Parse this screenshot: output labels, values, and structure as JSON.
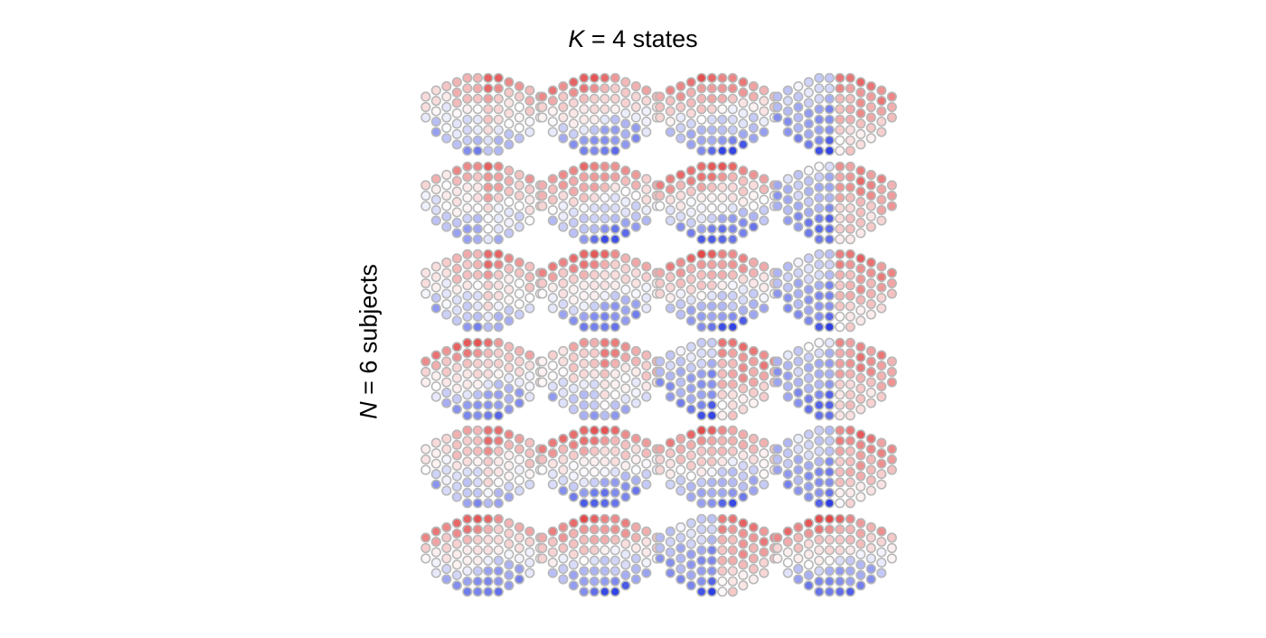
{
  "title": {
    "variable": "K",
    "rest": " = 4 states"
  },
  "ylabel": {
    "variable": "N",
    "rest": " = 6 subjects"
  },
  "grid": {
    "rows": 6,
    "cols": 4
  },
  "colors": {
    "positive": "#e03a3a",
    "neutral": "#ffffff",
    "negative": "#1a2ee0",
    "sensor_outline": "#b8b8b8"
  },
  "templates": {
    "A": [
      [
        0,
        0.2
      ],
      [
        1,
        0.3
      ],
      [
        2,
        -0.1
      ],
      [
        3,
        -0.4
      ],
      [
        4,
        0.55
      ],
      [
        5,
        0.7
      ],
      [
        6,
        0.8
      ],
      [
        7,
        0.5
      ],
      [
        8,
        0.45
      ],
      [
        9,
        0.35
      ],
      [
        10,
        0.4
      ],
      [
        11,
        0.45
      ],
      [
        12,
        0.3
      ],
      [
        13,
        0.25
      ],
      [
        14,
        0.2
      ],
      [
        15,
        0.1
      ],
      [
        16,
        -0.3
      ],
      [
        17,
        -0.55
      ],
      [
        18,
        -0.7
      ],
      [
        19,
        -0.8
      ],
      [
        20,
        -0.6
      ],
      [
        21,
        -0.95
      ],
      [
        22,
        -0.7
      ],
      [
        23,
        -0.4
      ],
      [
        24,
        -0.3
      ],
      [
        25,
        -0.2
      ]
    ],
    "B": [
      [
        0,
        0.7
      ],
      [
        1,
        0.6
      ],
      [
        2,
        0.3
      ],
      [
        3,
        0.1
      ],
      [
        4,
        0.2
      ],
      [
        5,
        0.3
      ],
      [
        6,
        0.4
      ],
      [
        7,
        0.35
      ],
      [
        8,
        0.3
      ],
      [
        9,
        0.25
      ],
      [
        10,
        0.2
      ],
      [
        11,
        0.1
      ],
      [
        12,
        -0.1
      ],
      [
        13,
        -0.3
      ],
      [
        14,
        -0.5
      ],
      [
        15,
        -0.7
      ],
      [
        16,
        -0.85
      ],
      [
        17,
        -0.9
      ],
      [
        18,
        -0.8
      ],
      [
        19,
        -0.75
      ],
      [
        20,
        -0.6
      ],
      [
        21,
        -0.35
      ],
      [
        22,
        -0.95
      ],
      [
        23,
        -0.5
      ],
      [
        24,
        0.2
      ],
      [
        25,
        0.1
      ]
    ],
    "C": [
      [
        0,
        0.8
      ],
      [
        1,
        0.65
      ],
      [
        2,
        0.4
      ],
      [
        3,
        0.25
      ],
      [
        4,
        0.1
      ],
      [
        5,
        0.05
      ],
      [
        6,
        0.0
      ],
      [
        7,
        0.1
      ],
      [
        8,
        0.2
      ],
      [
        9,
        0.15
      ],
      [
        10,
        0.05
      ],
      [
        11,
        -0.1
      ],
      [
        12,
        -0.3
      ],
      [
        13,
        -0.5
      ],
      [
        14,
        -0.7
      ],
      [
        15,
        -0.8
      ],
      [
        16,
        -0.85
      ],
      [
        17,
        -0.75
      ],
      [
        18,
        -0.6
      ],
      [
        19,
        -0.5
      ],
      [
        20,
        -0.95
      ],
      [
        21,
        -0.9
      ],
      [
        22,
        -0.9
      ],
      [
        23,
        -0.55
      ],
      [
        24,
        -0.4
      ],
      [
        25,
        -0.35
      ]
    ],
    "D": [
      [
        0,
        -0.3
      ],
      [
        1,
        0.4
      ],
      [
        2,
        0.5
      ],
      [
        3,
        0.6
      ],
      [
        4,
        0.7
      ],
      [
        5,
        0.65
      ],
      [
        6,
        0.55
      ],
      [
        7,
        0.4
      ],
      [
        8,
        0.3
      ],
      [
        9,
        0.2
      ],
      [
        10,
        -0.2
      ],
      [
        11,
        -0.4
      ],
      [
        12,
        -0.5
      ],
      [
        13,
        -0.6
      ],
      [
        14,
        -0.7
      ],
      [
        15,
        -0.8
      ],
      [
        16,
        -0.75
      ],
      [
        17,
        -0.6
      ],
      [
        18,
        0.3
      ],
      [
        19,
        0.45
      ],
      [
        20,
        -0.9
      ],
      [
        21,
        0.2
      ],
      [
        22,
        -0.95
      ],
      [
        23,
        0.3
      ],
      [
        24,
        -0.7
      ],
      [
        25,
        0.1
      ]
    ]
  },
  "cells": [
    [
      "A",
      "B",
      "C",
      "D"
    ],
    [
      "A",
      "B",
      "C",
      "D"
    ],
    [
      "A",
      "B",
      "C",
      "D"
    ],
    [
      "B",
      "A",
      "D",
      "D"
    ],
    [
      "A",
      "C",
      "B",
      "D"
    ],
    [
      "B",
      "C",
      "D",
      "C"
    ]
  ]
}
